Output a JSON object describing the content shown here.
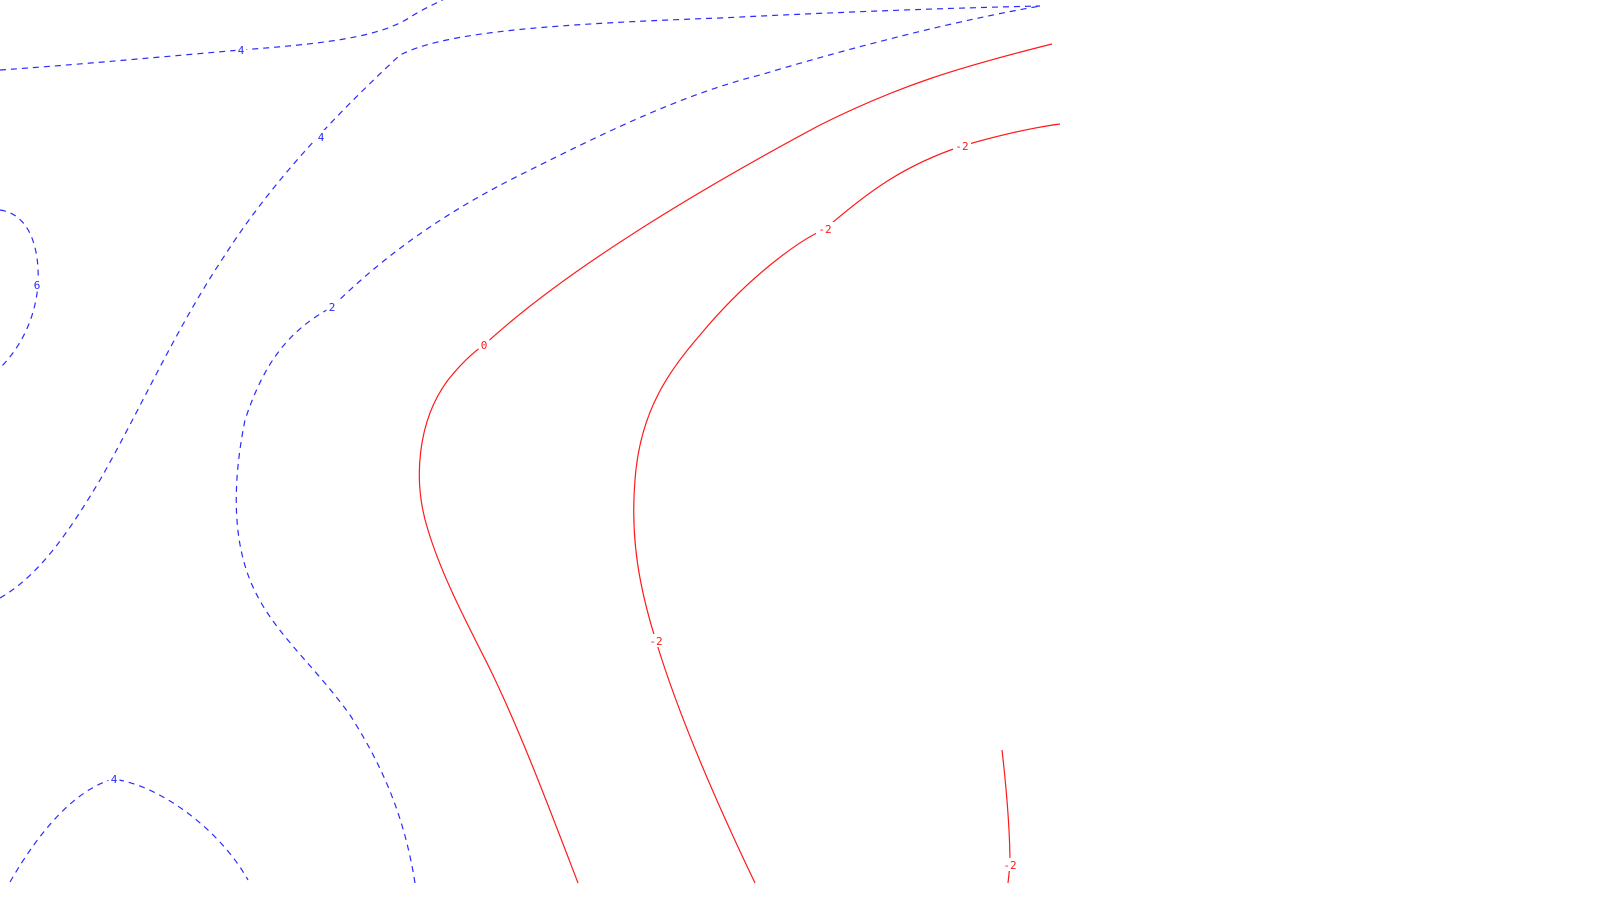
{
  "map": {
    "colors": {
      "positive": "#2b2bff",
      "nonpositive": "#ff1a1a",
      "background": "#ffffff"
    },
    "line_styles": {
      "positive": "dashed",
      "nonpositive": "solid"
    },
    "contours": [
      {
        "id": "pos-4-top-arc",
        "level": "4",
        "sign": "positive",
        "labels": [
          "4"
        ]
      },
      {
        "id": "pos-4-cross",
        "level": "4",
        "sign": "positive",
        "labels": [
          "4"
        ]
      },
      {
        "id": "pos-6-left",
        "level": "6",
        "sign": "positive",
        "labels": [
          "6"
        ]
      },
      {
        "id": "pos-2-main",
        "level": "2",
        "sign": "positive",
        "labels": [
          "2"
        ]
      },
      {
        "id": "pos-4-bottom",
        "level": "4",
        "sign": "positive",
        "labels": [
          "4"
        ]
      },
      {
        "id": "zero-main",
        "level": "0",
        "sign": "nonpositive",
        "labels": [
          "0"
        ]
      },
      {
        "id": "neg-2-main",
        "level": "-2",
        "sign": "nonpositive",
        "labels": [
          "-2",
          "-2",
          "-2"
        ]
      },
      {
        "id": "neg-2-bottom",
        "level": "-2",
        "sign": "nonpositive",
        "labels": [
          "-2"
        ]
      }
    ]
  }
}
